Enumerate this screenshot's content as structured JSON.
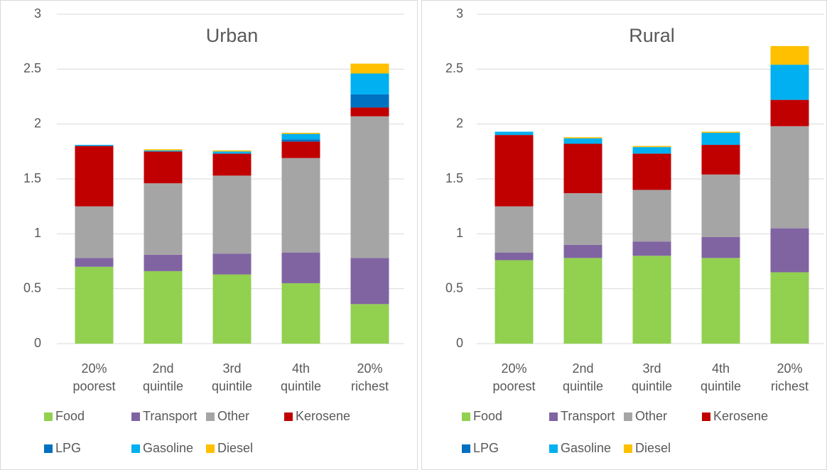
{
  "chart_data": [
    {
      "type": "bar",
      "stacked": true,
      "title": "Urban",
      "categories": [
        [
          "20%",
          "poorest"
        ],
        [
          "2nd",
          "quintile"
        ],
        [
          "3rd",
          "quintile"
        ],
        [
          "4th",
          "quintile"
        ],
        [
          "20%",
          "richest"
        ]
      ],
      "series": [
        {
          "name": "Food",
          "color": "#92d050",
          "values": [
            0.7,
            0.66,
            0.63,
            0.55,
            0.36
          ]
        },
        {
          "name": "Transport",
          "color": "#8064a2",
          "values": [
            0.08,
            0.15,
            0.19,
            0.28,
            0.42
          ]
        },
        {
          "name": "Other",
          "color": "#a5a5a5",
          "values": [
            0.47,
            0.65,
            0.71,
            0.86,
            1.29
          ]
        },
        {
          "name": "Kerosene",
          "color": "#c00000",
          "values": [
            0.55,
            0.29,
            0.2,
            0.15,
            0.08
          ]
        },
        {
          "name": "LPG",
          "color": "#0070c0",
          "values": [
            0,
            0,
            0,
            0.02,
            0.12
          ]
        },
        {
          "name": "Gasoline",
          "color": "#00b0f0",
          "values": [
            0.01,
            0.01,
            0.02,
            0.05,
            0.19
          ]
        },
        {
          "name": "Diesel",
          "color": "#ffc000",
          "values": [
            0,
            0.01,
            0.01,
            0.01,
            0.09
          ]
        }
      ],
      "ylim": [
        0,
        3
      ],
      "yticks": [
        0,
        0.5,
        1,
        1.5,
        2,
        2.5,
        3
      ],
      "grid": true
    },
    {
      "type": "bar",
      "stacked": true,
      "title": "Rural",
      "categories": [
        [
          "20%",
          "poorest"
        ],
        [
          "2nd",
          "quintile"
        ],
        [
          "3rd",
          "quintile"
        ],
        [
          "4th",
          "quintile"
        ],
        [
          "20%",
          "richest"
        ]
      ],
      "series": [
        {
          "name": "Food",
          "color": "#92d050",
          "values": [
            0.76,
            0.78,
            0.8,
            0.78,
            0.65
          ]
        },
        {
          "name": "Transport",
          "color": "#8064a2",
          "values": [
            0.07,
            0.12,
            0.13,
            0.19,
            0.4
          ]
        },
        {
          "name": "Other",
          "color": "#a5a5a5",
          "values": [
            0.42,
            0.47,
            0.47,
            0.57,
            0.93
          ]
        },
        {
          "name": "Kerosene",
          "color": "#c00000",
          "values": [
            0.65,
            0.45,
            0.33,
            0.27,
            0.24
          ]
        },
        {
          "name": "LPG",
          "color": "#0070c0",
          "values": [
            0,
            0,
            0,
            0,
            0
          ]
        },
        {
          "name": "Gasoline",
          "color": "#00b0f0",
          "values": [
            0.03,
            0.05,
            0.06,
            0.11,
            0.32
          ]
        },
        {
          "name": "Diesel",
          "color": "#ffc000",
          "values": [
            0,
            0.01,
            0.01,
            0.01,
            0.17
          ]
        }
      ],
      "ylim": [
        0,
        3
      ],
      "yticks": [
        0,
        0.5,
        1,
        1.5,
        2,
        2.5,
        3
      ],
      "grid": true
    }
  ]
}
